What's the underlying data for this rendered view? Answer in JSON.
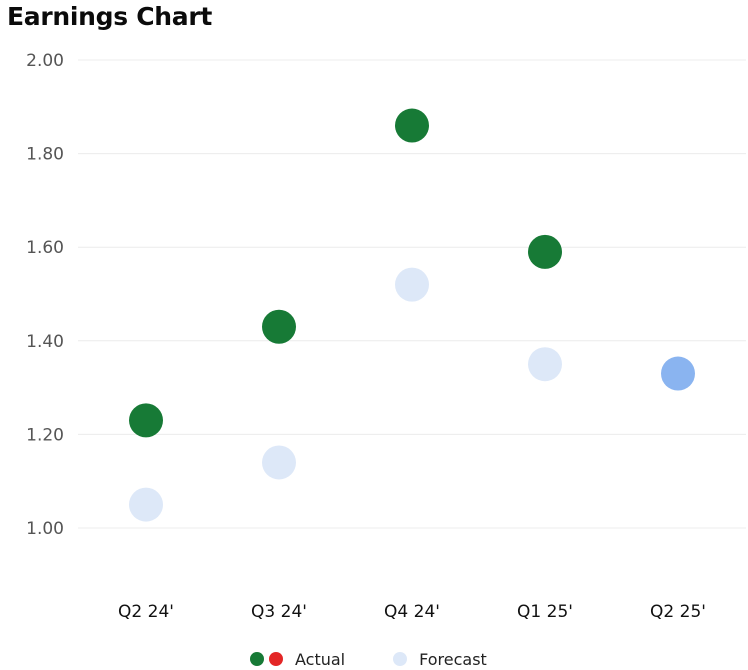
{
  "chart_data": {
    "type": "scatter",
    "title": "Earnings Chart",
    "xlabel": "",
    "ylabel": "",
    "categories": [
      "Q2 24'",
      "Q3 24'",
      "Q4 24'",
      "Q1 25'",
      "Q2 25'"
    ],
    "yticks": [
      "2.00",
      "1.80",
      "1.60",
      "1.40",
      "1.20",
      "1.00"
    ],
    "ylim": [
      0.8,
      2.0
    ],
    "grid": true,
    "legend_position": "bottom",
    "series": [
      {
        "name": "Actual",
        "values": [
          1.23,
          1.43,
          1.86,
          1.59,
          null
        ],
        "color": "#177a36",
        "alt_color": "#e32626"
      },
      {
        "name": "Forecast",
        "values": [
          1.05,
          1.14,
          1.52,
          1.35,
          1.33
        ],
        "color": "#dde8f8",
        "highlight_color": "#8ab4f0"
      }
    ]
  }
}
